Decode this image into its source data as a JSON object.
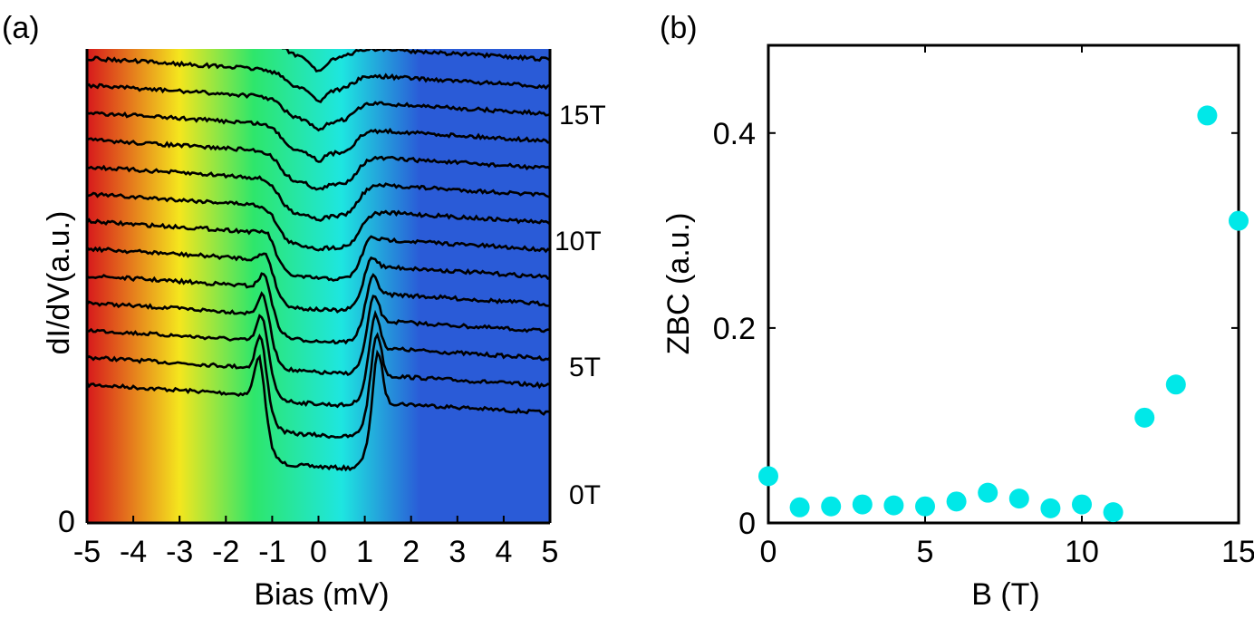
{
  "chart_data": [
    {
      "type": "line",
      "panel_label": "(a)",
      "xlabel": "Bias (mV)",
      "ylabel": "dI/dV(a.u.)",
      "xlim": [
        -5,
        5
      ],
      "x_ticks": [
        "-5",
        "-4",
        "-3",
        "-2",
        "-1",
        "0",
        "1",
        "2",
        "3",
        "4",
        "5"
      ],
      "y_ticks": [
        "0"
      ],
      "field_labels": [
        "0T",
        "5T",
        "10T",
        "15T"
      ],
      "colormap": [
        "#d7191c",
        "#f4e61e",
        "#2ee66b",
        "#1ee6e0",
        "#2a5bd7"
      ],
      "series": [
        {
          "field": 0
        },
        {
          "field": 1
        },
        {
          "field": 2
        },
        {
          "field": 3
        },
        {
          "field": 4
        },
        {
          "field": 5
        },
        {
          "field": 6
        },
        {
          "field": 7
        },
        {
          "field": 8
        },
        {
          "field": 9
        },
        {
          "field": 10
        },
        {
          "field": 11
        },
        {
          "field": 12
        },
        {
          "field": 13
        },
        {
          "field": 14
        },
        {
          "field": 15
        }
      ]
    },
    {
      "type": "scatter",
      "panel_label": "(b)",
      "xlabel": "B (T)",
      "ylabel": "ZBC (a.u.)",
      "xlim": [
        0,
        15
      ],
      "ylim": [
        0,
        0.49
      ],
      "x_ticks": [
        "0",
        "5",
        "10",
        "15"
      ],
      "y_ticks": [
        "0",
        "0.2",
        "0.4"
      ],
      "marker_color": "#00e8e8",
      "x": [
        0,
        1,
        2,
        3,
        4,
        5,
        6,
        7,
        8,
        9,
        10,
        11,
        12,
        13,
        14,
        15
      ],
      "y": [
        0.048,
        0.016,
        0.017,
        0.019,
        0.018,
        0.017,
        0.022,
        0.031,
        0.025,
        0.015,
        0.019,
        0.011,
        0.108,
        0.142,
        0.418,
        0.31
      ]
    }
  ]
}
